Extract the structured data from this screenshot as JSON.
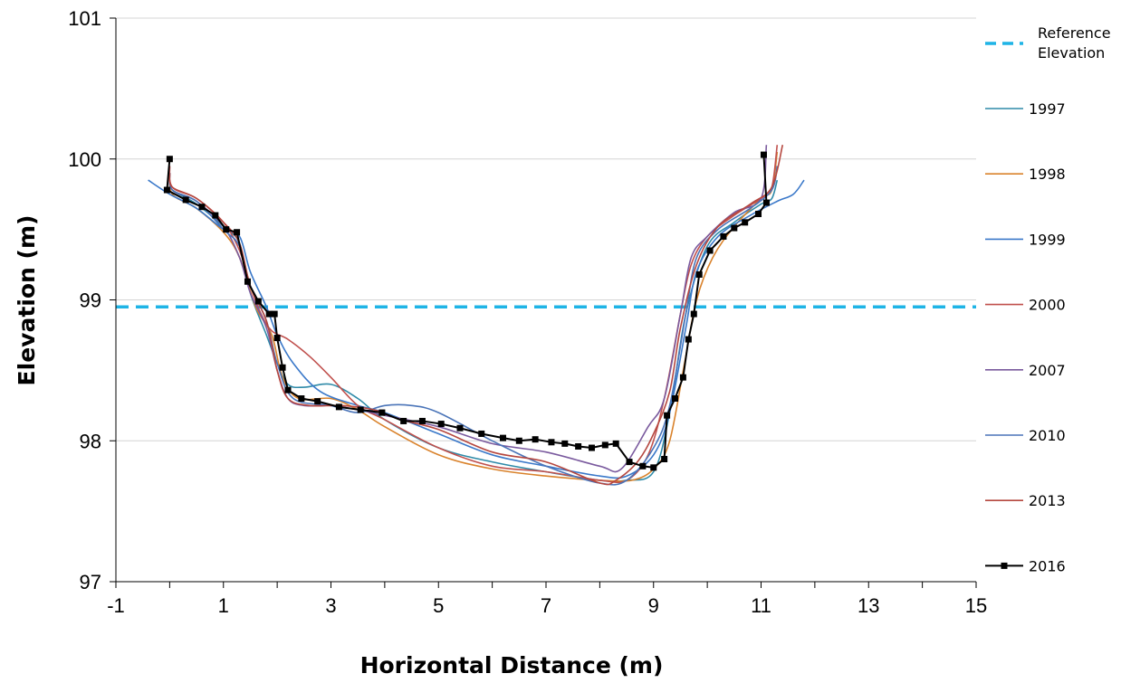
{
  "chart_data": {
    "type": "line",
    "title": "",
    "xlabel": "Horizontal Distance (m)",
    "ylabel": "Elevation (m)",
    "xlim": [
      -1,
      15
    ],
    "ylim": [
      97,
      101
    ],
    "xticks": [
      -1,
      1,
      3,
      5,
      7,
      9,
      11,
      13,
      15
    ],
    "yticks": [
      97,
      98,
      99,
      100,
      101
    ],
    "grid": "horizontal",
    "legend_position": "right",
    "reference_elevation": {
      "name": "Reference Elevation",
      "value": 98.95,
      "color": "#1fb4e6"
    },
    "series": [
      {
        "name": "1997",
        "color": "#2e8aa8",
        "x": [
          0.0,
          0.05,
          0.5,
          1.0,
          1.3,
          1.5,
          1.8,
          2.0,
          2.2,
          2.5,
          3.0,
          3.5,
          4.0,
          5.0,
          6.0,
          7.0,
          8.0,
          8.5,
          9.0,
          9.3,
          9.6,
          10.0,
          10.5,
          11.0,
          11.2,
          11.3
        ],
        "y": [
          99.85,
          99.78,
          99.68,
          99.52,
          99.4,
          99.05,
          98.75,
          98.55,
          98.4,
          98.38,
          98.4,
          98.3,
          98.15,
          97.95,
          97.85,
          97.78,
          97.72,
          97.72,
          97.78,
          98.2,
          98.9,
          99.38,
          99.55,
          99.68,
          99.72,
          99.85
        ]
      },
      {
        "name": "1998",
        "color": "#d9822b",
        "x": [
          0.0,
          0.05,
          0.5,
          1.0,
          1.3,
          1.6,
          1.9,
          2.1,
          2.4,
          3.0,
          3.5,
          4.0,
          5.0,
          6.0,
          7.0,
          8.0,
          8.6,
          9.0,
          9.3,
          9.6,
          9.8,
          10.1,
          10.5,
          11.0,
          11.2,
          11.3
        ],
        "y": [
          99.9,
          99.75,
          99.65,
          99.48,
          99.3,
          98.95,
          98.75,
          98.45,
          98.3,
          98.3,
          98.22,
          98.1,
          97.9,
          97.8,
          97.75,
          97.72,
          97.72,
          97.8,
          98.0,
          98.6,
          99.0,
          99.3,
          99.52,
          99.72,
          99.78,
          100.05
        ]
      },
      {
        "name": "1999",
        "color": "#3a78c9",
        "x": [
          -0.4,
          0.0,
          0.5,
          1.0,
          1.3,
          1.5,
          1.8,
          2.0,
          2.3,
          2.8,
          3.5,
          4.0,
          5.0,
          6.0,
          7.0,
          8.0,
          8.5,
          9.0,
          9.3,
          9.6,
          9.8,
          10.2,
          10.8,
          11.3,
          11.6,
          11.8
        ],
        "y": [
          99.85,
          99.75,
          99.65,
          99.5,
          99.45,
          99.2,
          98.95,
          98.75,
          98.55,
          98.35,
          98.25,
          98.2,
          98.05,
          97.9,
          97.82,
          97.75,
          97.75,
          97.9,
          98.2,
          98.8,
          99.2,
          99.45,
          99.6,
          99.7,
          99.75,
          99.85
        ]
      },
      {
        "name": "2000",
        "color": "#c0504d",
        "x": [
          0.0,
          0.05,
          0.5,
          1.0,
          1.3,
          1.5,
          1.7,
          1.9,
          2.2,
          2.6,
          3.0,
          3.5,
          4.0,
          5.0,
          6.0,
          7.0,
          8.0,
          8.5,
          8.9,
          9.2,
          9.5,
          9.7,
          10.0,
          10.5,
          11.0,
          11.2,
          11.3
        ],
        "y": [
          99.95,
          99.8,
          99.72,
          99.55,
          99.35,
          99.1,
          98.9,
          98.78,
          98.72,
          98.6,
          98.45,
          98.25,
          98.15,
          97.95,
          97.82,
          97.78,
          97.72,
          97.72,
          97.9,
          98.3,
          98.9,
          99.25,
          99.45,
          99.6,
          99.72,
          99.8,
          100.1
        ]
      },
      {
        "name": "2007",
        "color": "#7a5a9e",
        "x": [
          0.0,
          0.05,
          0.5,
          1.0,
          1.3,
          1.5,
          1.8,
          2.0,
          2.2,
          2.5,
          3.0,
          3.5,
          4.0,
          5.0,
          6.0,
          7.0,
          8.0,
          8.4,
          8.9,
          9.2,
          9.5,
          9.7,
          10.0,
          10.5,
          11.0,
          11.1
        ],
        "y": [
          99.9,
          99.78,
          99.7,
          99.52,
          99.3,
          99.05,
          98.8,
          98.5,
          98.3,
          98.25,
          98.25,
          98.22,
          98.18,
          98.1,
          97.98,
          97.92,
          97.82,
          97.8,
          98.1,
          98.3,
          98.9,
          99.3,
          99.45,
          99.62,
          99.72,
          100.1
        ]
      },
      {
        "name": "2010",
        "color": "#4a74b8",
        "x": [
          0.0,
          0.05,
          0.5,
          1.0,
          1.3,
          1.5,
          1.8,
          2.0,
          2.3,
          3.0,
          3.5,
          4.0,
          4.5,
          5.0,
          6.0,
          7.0,
          8.0,
          8.5,
          9.0,
          9.3,
          9.6,
          9.8,
          10.2,
          10.8,
          11.2,
          11.3
        ],
        "y": [
          99.9,
          99.78,
          99.7,
          99.5,
          99.38,
          99.1,
          98.85,
          98.55,
          98.3,
          98.25,
          98.2,
          98.25,
          98.25,
          98.2,
          98.0,
          97.82,
          97.7,
          97.72,
          97.95,
          98.25,
          98.9,
          99.3,
          99.5,
          99.65,
          99.78,
          99.95
        ]
      },
      {
        "name": "2013",
        "color": "#b5473f",
        "x": [
          0.0,
          0.05,
          0.5,
          1.0,
          1.3,
          1.5,
          1.8,
          2.0,
          2.2,
          2.6,
          3.2,
          3.8,
          4.3,
          5.0,
          6.0,
          7.0,
          8.0,
          8.3,
          8.7,
          9.0,
          9.3,
          9.5,
          9.8,
          10.2,
          10.8,
          11.2,
          11.4
        ],
        "y": [
          99.9,
          99.8,
          99.72,
          99.55,
          99.4,
          99.1,
          98.85,
          98.5,
          98.3,
          98.25,
          98.25,
          98.22,
          98.15,
          98.08,
          97.92,
          97.85,
          97.7,
          97.72,
          97.85,
          98.05,
          98.35,
          98.8,
          99.25,
          99.52,
          99.68,
          99.8,
          100.1
        ]
      },
      {
        "name": "2016",
        "color": "#000000",
        "markers": true,
        "x": [
          0.0,
          -0.05,
          0.3,
          0.6,
          0.85,
          1.05,
          1.25,
          1.45,
          1.65,
          1.85,
          1.95,
          2.0,
          2.1,
          2.2,
          2.45,
          2.75,
          3.15,
          3.55,
          3.95,
          4.35,
          4.7,
          5.05,
          5.4,
          5.8,
          6.2,
          6.5,
          6.8,
          7.1,
          7.35,
          7.6,
          7.85,
          8.1,
          8.3,
          8.55,
          8.8,
          9.0,
          9.2,
          9.25,
          9.4,
          9.55,
          9.65,
          9.75,
          9.85,
          10.05,
          10.3,
          10.5,
          10.7,
          10.95,
          11.1,
          11.05
        ],
        "y": [
          100.0,
          99.78,
          99.71,
          99.66,
          99.6,
          99.5,
          99.48,
          99.13,
          98.99,
          98.9,
          98.9,
          98.73,
          98.52,
          98.36,
          98.3,
          98.28,
          98.24,
          98.22,
          98.2,
          98.14,
          98.14,
          98.12,
          98.09,
          98.05,
          98.02,
          98.0,
          98.01,
          97.99,
          97.98,
          97.96,
          97.95,
          97.97,
          97.98,
          97.85,
          97.82,
          97.81,
          97.87,
          98.18,
          98.3,
          98.45,
          98.72,
          98.9,
          99.18,
          99.35,
          99.45,
          99.51,
          99.55,
          99.61,
          99.69,
          100.03
        ]
      }
    ]
  }
}
